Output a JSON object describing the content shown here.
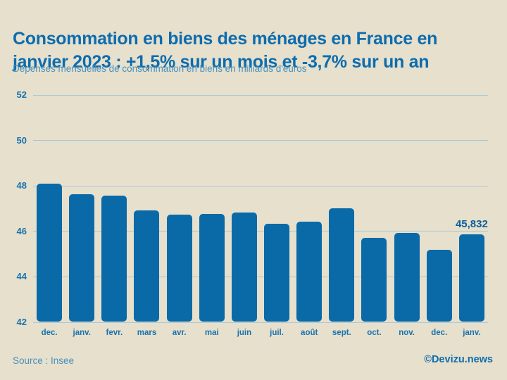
{
  "header": {
    "title_line1": "Consommation en biens des ménages en France en",
    "title_line2": "janvier 2023 : +1,5% sur un mois et -3,7% sur un an",
    "subtitle": "Dépenses mensuelles de consommation en biens en milliards d'euros"
  },
  "chart_data": {
    "type": "bar",
    "title": "Consommation en biens des ménages en France en janvier 2023 : +1,5% sur un mois et -3,7% sur un an",
    "subtitle": "Dépenses mensuelles de consommation en biens en milliards d'euros",
    "categories": [
      "dec.",
      "janv.",
      "fevr.",
      "mars",
      "avr.",
      "mai",
      "juin",
      "juil.",
      "août",
      "sept.",
      "oct.",
      "nov.",
      "dec.",
      "janv."
    ],
    "values": [
      48.08,
      47.61,
      47.55,
      46.89,
      46.72,
      46.74,
      46.81,
      46.31,
      46.4,
      47.0,
      45.7,
      45.9,
      45.16,
      45.832
    ],
    "ylim": [
      42,
      52
    ],
    "yticks": [
      52,
      50,
      48,
      46,
      44,
      42
    ],
    "grid": true,
    "legend": false,
    "xlabel": "",
    "ylabel": "",
    "annotation": {
      "index": 13,
      "text": "45,832"
    }
  },
  "footer": {
    "source": "Source : Insee",
    "credit": "©Devizu.news"
  },
  "colors": {
    "background": "#e6e0cd",
    "title": "#0d6cae",
    "subtitle": "#4a90bb",
    "bar": "#0a6aa8",
    "gridline": "#a9c7d6",
    "tick_label": "#1a72ad",
    "annotation": "#0d5f99",
    "credit": "#0f6cab"
  }
}
